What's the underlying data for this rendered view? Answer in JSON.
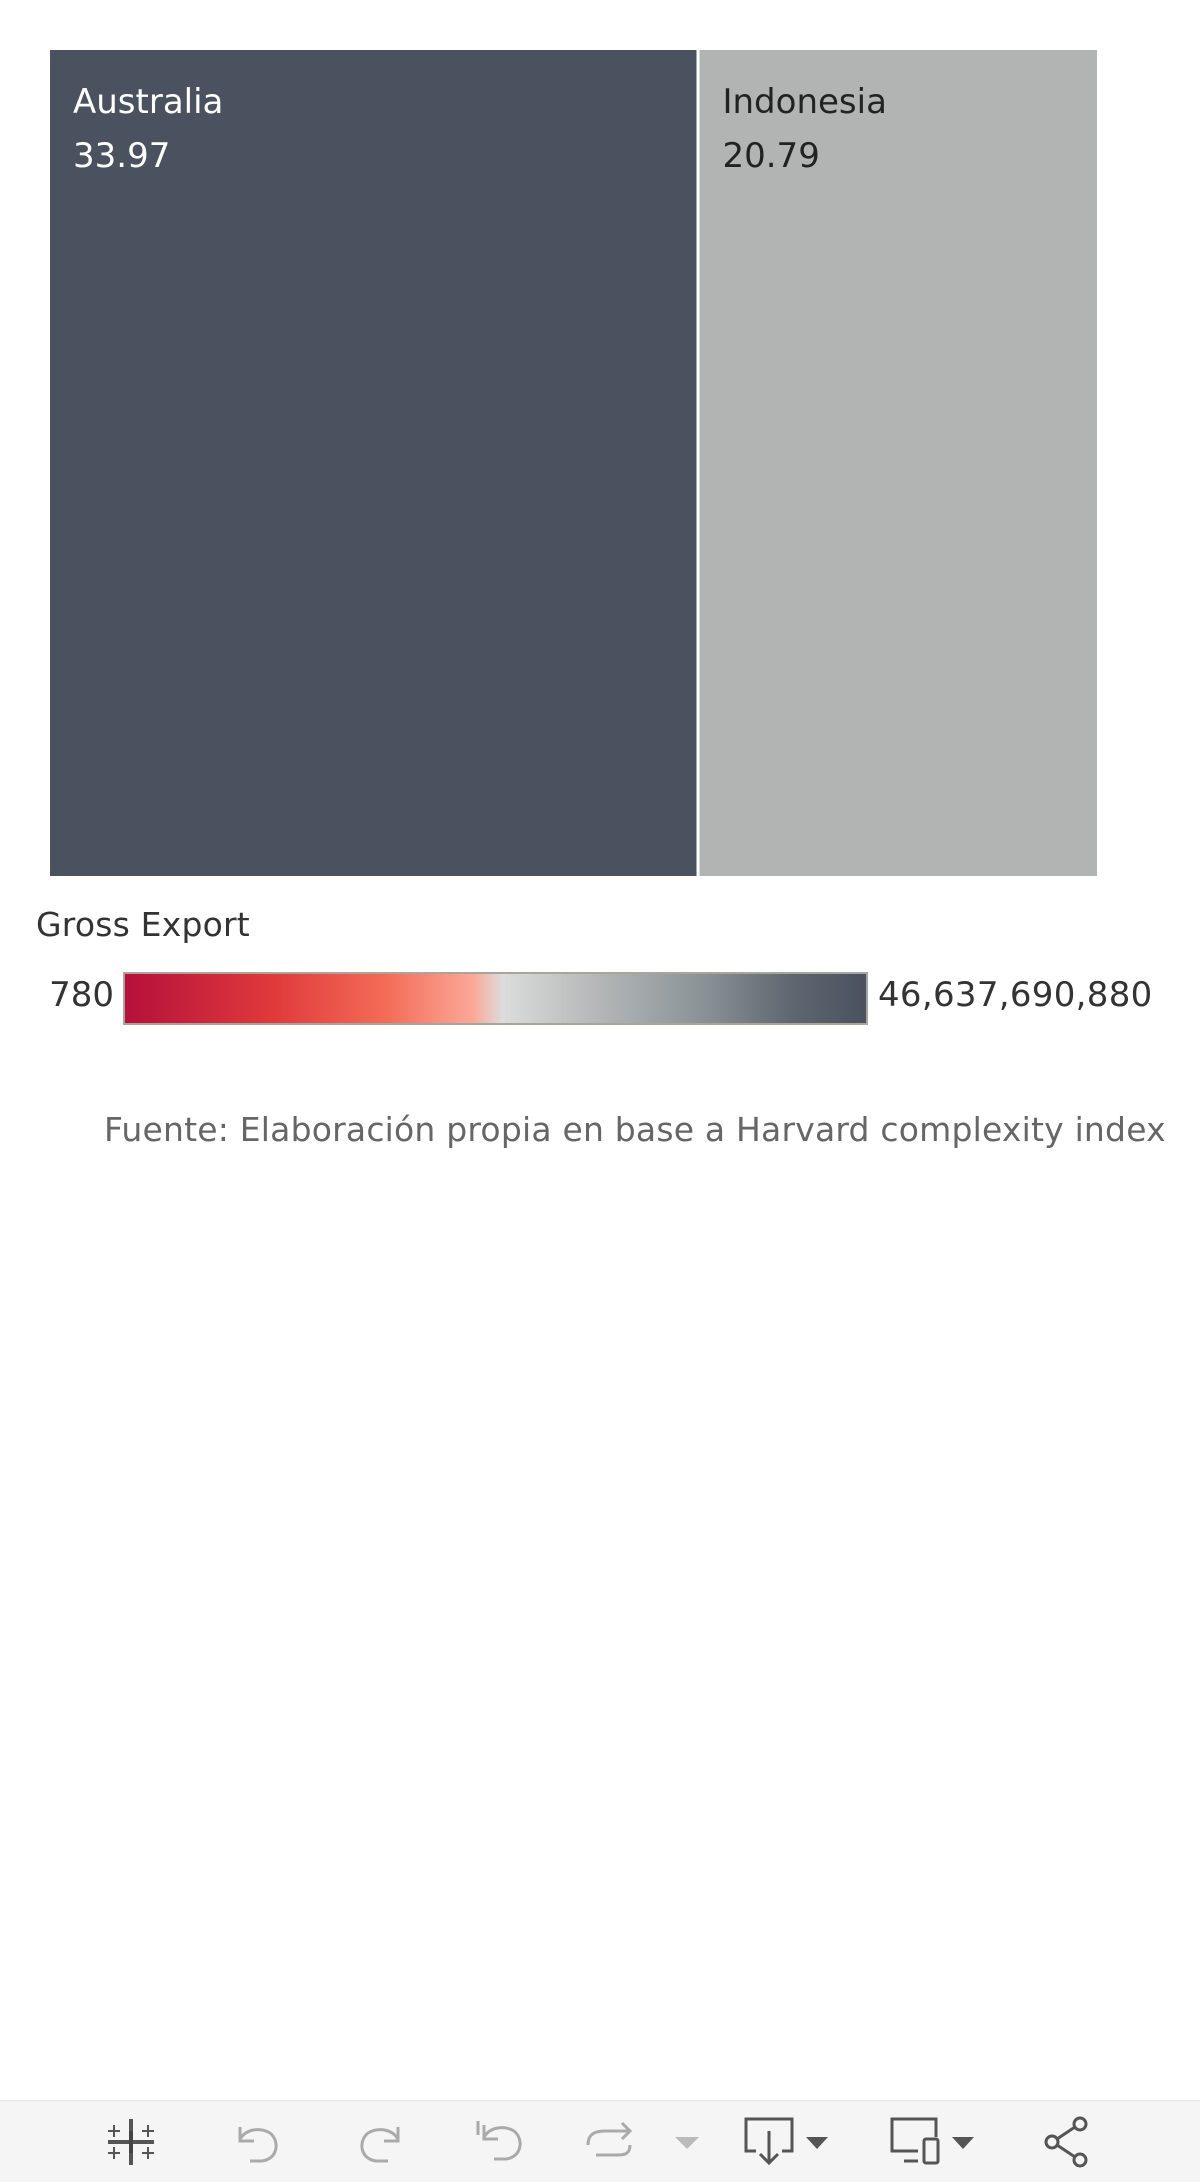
{
  "chart_data": {
    "type": "treemap",
    "items": [
      {
        "label": "Australia",
        "value": 33.97,
        "value_text": "33.97",
        "color": "#4a515f",
        "text_color": "#ffffff"
      },
      {
        "label": "Indonesia",
        "value": 20.79,
        "value_text": "20.79",
        "color": "#b1b4b3",
        "text_color": "#222222"
      }
    ],
    "color_legend": {
      "title": "Gross Export",
      "min_label": "780",
      "max_label": "46,637,690,880",
      "low_color": "#b5103b",
      "mid_color": "#dcdcdc",
      "high_color": "#4a515f"
    }
  },
  "source_note": "Fuente: Elaboración propia en base a Harvard complexity index",
  "toolbar": {
    "icons": [
      "tableau-logo-icon",
      "undo-icon",
      "redo-icon",
      "revert-icon",
      "refresh-icon",
      "pause-dropdown-icon",
      "download-icon",
      "device-layout-icon",
      "share-icon"
    ]
  }
}
